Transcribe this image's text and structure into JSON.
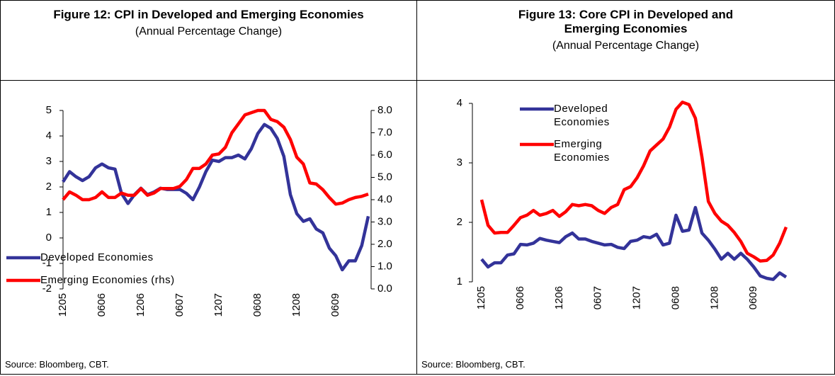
{
  "chart_data": [
    {
      "type": "line",
      "title": "Figure 12: CPI in Developed and Emerging Economies",
      "subtitle": "(Annual Percentage Change)",
      "source": "Source: Bloomberg, CBT.",
      "categories": [
        "1205",
        null,
        null,
        null,
        null,
        null,
        "0606",
        null,
        null,
        null,
        null,
        null,
        "1206",
        null,
        null,
        null,
        null,
        null,
        "0607",
        null,
        null,
        null,
        null,
        null,
        "1207",
        null,
        null,
        null,
        null,
        null,
        "0608",
        null,
        null,
        null,
        null,
        null,
        "1208",
        null,
        null,
        null,
        null,
        null,
        "0609",
        null,
        null,
        null,
        null,
        null
      ],
      "ylim": [
        -2,
        5
      ],
      "yticks": [
        -2,
        -1,
        0,
        1,
        2,
        3,
        4,
        5
      ],
      "y2lim": [
        0,
        8
      ],
      "y2ticks": [
        {
          "value": 0,
          "label": "0.0"
        },
        {
          "value": 1,
          "label": "1.0"
        },
        {
          "value": 2,
          "label": "2.0"
        },
        {
          "value": 3,
          "label": "3.0"
        },
        {
          "value": 4,
          "label": "4.0"
        },
        {
          "value": 5,
          "label": "5.0"
        },
        {
          "value": 6,
          "label": "6.0"
        },
        {
          "value": 7,
          "label": "7.0"
        },
        {
          "value": 8,
          "label": "8.0"
        }
      ],
      "grid": false,
      "legend": "lower left",
      "series": [
        {
          "name": "Developed Economies",
          "color": "#333399",
          "values": [
            2.2,
            2.6,
            2.4,
            2.25,
            2.4,
            2.75,
            2.9,
            2.75,
            2.7,
            1.75,
            1.35,
            1.7,
            1.95,
            1.7,
            1.8,
            1.95,
            1.9,
            1.9,
            1.9,
            1.75,
            1.5,
            2.0,
            2.6,
            3.05,
            3.0,
            3.15,
            3.15,
            3.25,
            3.1,
            3.5,
            4.1,
            4.45,
            4.3,
            3.9,
            3.2,
            1.7,
            0.95,
            0.65,
            0.75,
            0.35,
            0.2,
            -0.4,
            -0.7,
            -1.25,
            -0.9,
            -0.9,
            -0.3,
            0.85
          ]
        },
        {
          "name": "Emerging Economies (rhs)",
          "color": "#ff0000",
          "axis": "y2",
          "values": [
            4.0,
            4.35,
            4.2,
            4.0,
            4.0,
            4.1,
            4.35,
            4.1,
            4.1,
            4.3,
            4.2,
            4.2,
            4.5,
            4.2,
            4.3,
            4.5,
            4.5,
            4.5,
            4.6,
            4.9,
            5.4,
            5.4,
            5.6,
            6.0,
            6.05,
            6.35,
            7.0,
            7.4,
            7.8,
            7.9,
            8.0,
            8.0,
            7.6,
            7.5,
            7.25,
            6.7,
            5.9,
            5.6,
            4.75,
            4.7,
            4.45,
            4.1,
            3.8,
            3.85,
            4.0,
            4.1,
            4.15,
            4.25
          ]
        }
      ]
    },
    {
      "type": "line",
      "title": "Figure 13: Core CPI in Developed and Emerging Economies",
      "subtitle": "(Annual Percentage Change)",
      "source": "Source: Bloomberg, CBT.",
      "categories": [
        "1205",
        null,
        null,
        null,
        null,
        null,
        "0606",
        null,
        null,
        null,
        null,
        null,
        "1206",
        null,
        null,
        null,
        null,
        null,
        "0607",
        null,
        null,
        null,
        null,
        null,
        "1207",
        null,
        null,
        null,
        null,
        null,
        "0608",
        null,
        null,
        null,
        null,
        null,
        "1208",
        null,
        null,
        null,
        null,
        null,
        "0609",
        null,
        null,
        null,
        null,
        null
      ],
      "ylim": [
        1,
        4
      ],
      "yticks": [
        1,
        2,
        3,
        4
      ],
      "grid": false,
      "legend": "upper left",
      "series": [
        {
          "name": "Developed Economies",
          "color": "#333399",
          "values": [
            1.38,
            1.25,
            1.32,
            1.32,
            1.45,
            1.47,
            1.63,
            1.62,
            1.65,
            1.73,
            1.7,
            1.68,
            1.66,
            1.76,
            1.82,
            1.72,
            1.72,
            1.68,
            1.65,
            1.62,
            1.63,
            1.58,
            1.56,
            1.68,
            1.7,
            1.76,
            1.74,
            1.8,
            1.62,
            1.65,
            2.12,
            1.85,
            1.87,
            2.25,
            1.82,
            1.7,
            1.55,
            1.38,
            1.48,
            1.38,
            1.48,
            1.38,
            1.25,
            1.1,
            1.06,
            1.04,
            1.15,
            1.08
          ]
        },
        {
          "name": "Emerging Economies",
          "color": "#ff0000",
          "values": [
            2.38,
            1.95,
            1.82,
            1.83,
            1.83,
            1.95,
            2.08,
            2.12,
            2.2,
            2.12,
            2.15,
            2.2,
            2.1,
            2.18,
            2.3,
            2.28,
            2.3,
            2.28,
            2.2,
            2.15,
            2.25,
            2.3,
            2.55,
            2.6,
            2.75,
            2.95,
            3.2,
            3.3,
            3.4,
            3.6,
            3.9,
            4.02,
            3.98,
            3.75,
            3.1,
            2.35,
            2.15,
            2.02,
            1.95,
            1.83,
            1.68,
            1.48,
            1.42,
            1.35,
            1.36,
            1.45,
            1.65,
            1.92
          ]
        }
      ]
    }
  ]
}
